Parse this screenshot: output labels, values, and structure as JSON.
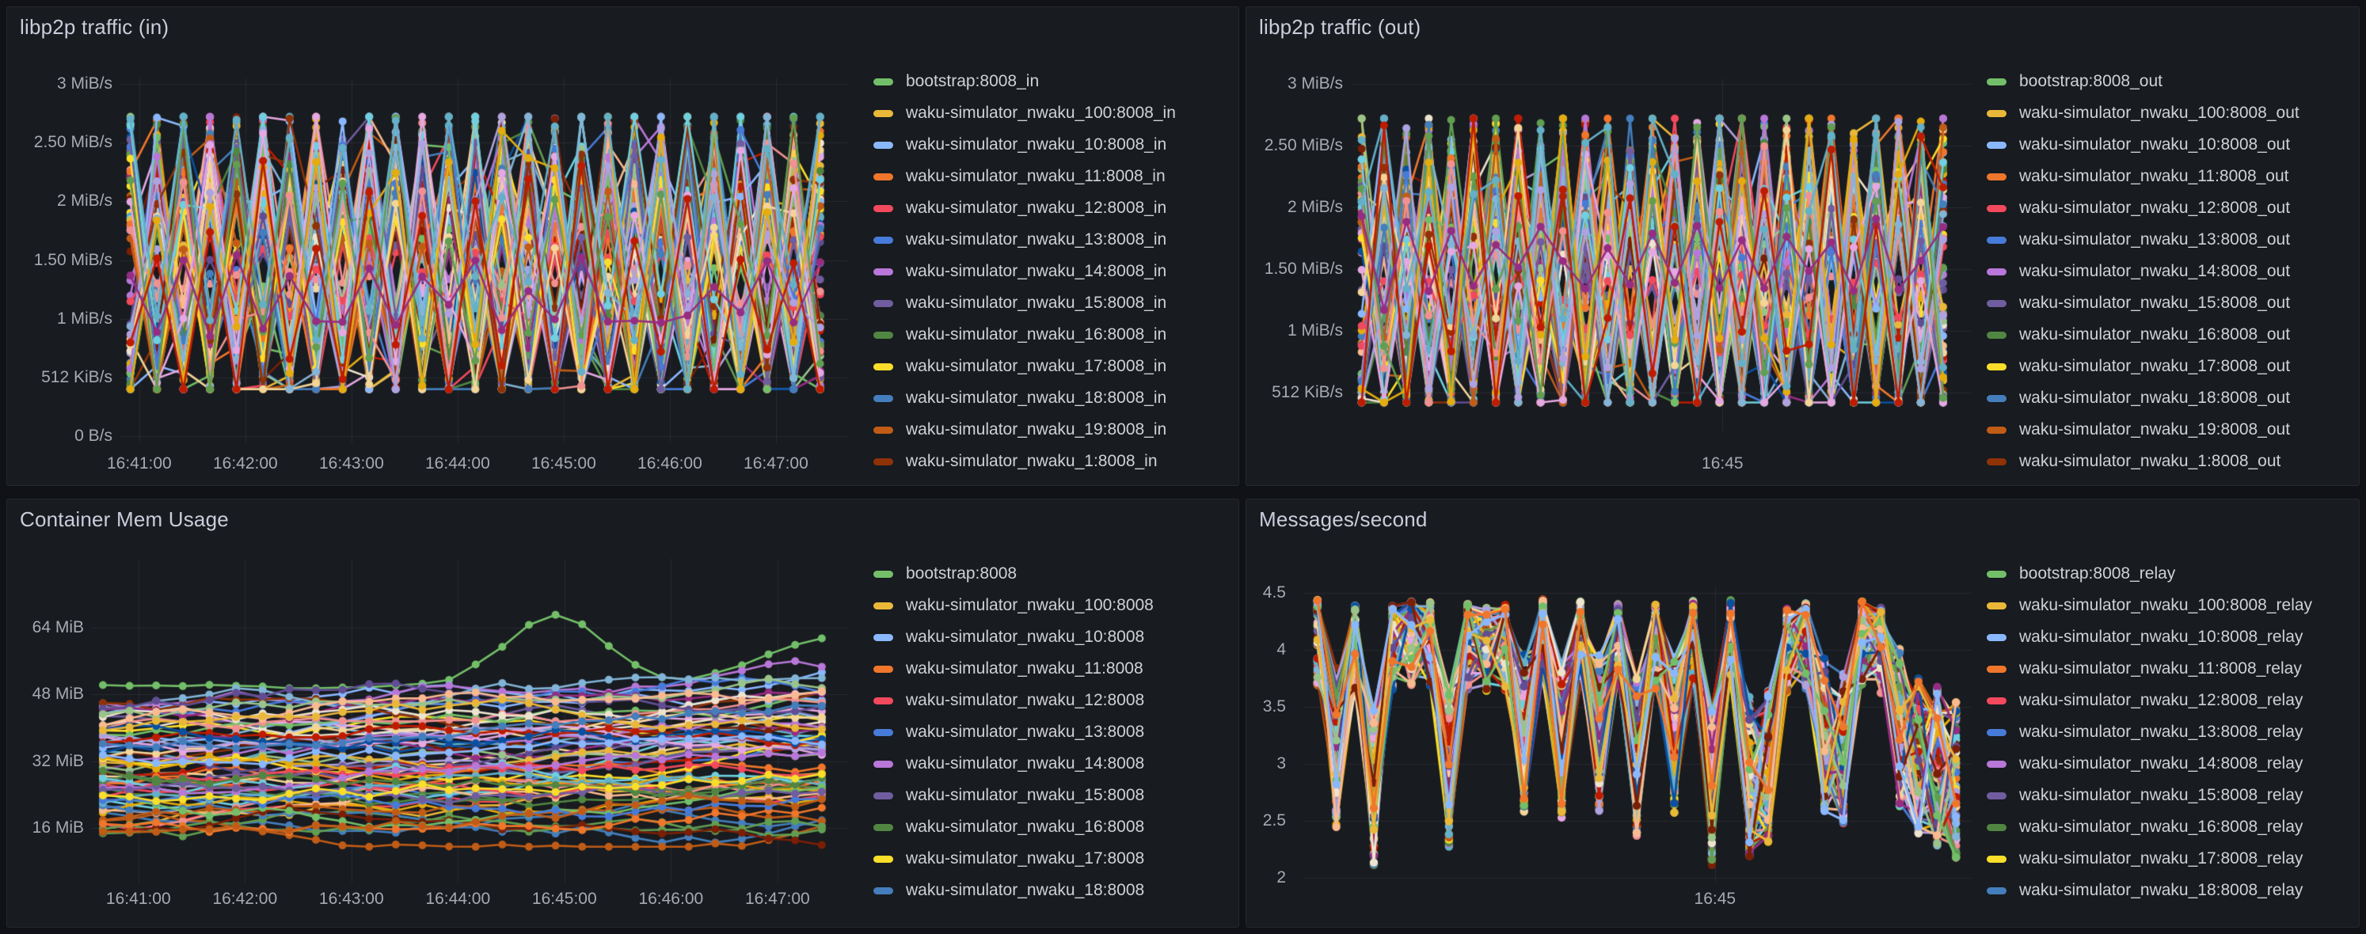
{
  "page": {
    "background": "#111217",
    "panel_background": "#181b1f"
  },
  "theme": {
    "accent_text": "#ccccdc",
    "axis_text": "#a7aab2",
    "grid_color": "rgba(204,204,220,0.09)"
  },
  "palette": [
    "#73BF69",
    "#EAB839",
    "#8AB8FF",
    "#F0762B",
    "#F2495C",
    "#477BD9",
    "#B877D9",
    "#705DA0",
    "#508642",
    "#FADE2A",
    "#447EBC",
    "#C15C17",
    "#8F3208",
    "#6ED0E0",
    "#F4D598",
    "#F29191",
    "#82B5D8",
    "#E5A8E2",
    "#AEA2E0",
    "#629E51",
    "#E5AC0E",
    "#64B0C8",
    "#BF1B00",
    "#962D82",
    "#EDE4CF",
    "#0A50A1",
    "#614D93",
    "#9AC48A",
    "#F9BA8F",
    "#7A1F06"
  ],
  "chart_data": [
    {
      "id": "libp2p_traffic_in",
      "type": "line",
      "title": "libp2p traffic (in)",
      "y_tick_labels": [
        "3 MiB/s",
        "2.50 MiB/s",
        "2 MiB/s",
        "1.50 MiB/s",
        "1 MiB/s",
        "512 KiB/s",
        "0 B/s"
      ],
      "y_tick_values_mib_per_s": [
        3,
        2.5,
        2,
        1.5,
        1,
        0.5,
        0
      ],
      "ylim_mib_per_s": [
        0,
        3.15
      ],
      "x_tick_labels": [
        "16:41:00",
        "16:42:00",
        "16:43:00",
        "16:44:00",
        "16:45:00",
        "16:46:00",
        "16:47:00"
      ],
      "x_range": [
        "16:40:52",
        "16:47:39"
      ],
      "legend_position": "right",
      "legend_entries": [
        "bootstrap:8008_in",
        "waku-simulator_nwaku_100:8008_in",
        "waku-simulator_nwaku_10:8008_in",
        "waku-simulator_nwaku_11:8008_in",
        "waku-simulator_nwaku_12:8008_in",
        "waku-simulator_nwaku_13:8008_in",
        "waku-simulator_nwaku_14:8008_in",
        "waku-simulator_nwaku_15:8008_in",
        "waku-simulator_nwaku_16:8008_in",
        "waku-simulator_nwaku_17:8008_in",
        "waku-simulator_nwaku_18:8008_in",
        "waku-simulator_nwaku_19:8008_in",
        "waku-simulator_nwaku_1:8008_in"
      ],
      "legend_last_entry_clipped": true,
      "estimated_total_series": 101,
      "value_envelope_mib_per_s": [
        0.4,
        2.72
      ],
      "sample_interval_seconds": 15,
      "pattern": "dense alternating zigzag, all series oscillate between ~0.4 and ~2.7 MiB/s with point markers"
    },
    {
      "id": "libp2p_traffic_out",
      "type": "line",
      "title": "libp2p traffic (out)",
      "y_tick_labels": [
        "3 MiB/s",
        "2.50 MiB/s",
        "2 MiB/s",
        "1.50 MiB/s",
        "1 MiB/s",
        "512 KiB/s"
      ],
      "y_tick_values_mib_per_s": [
        3,
        2.5,
        2,
        1.5,
        1,
        0.5
      ],
      "ylim_mib_per_s": [
        0.2,
        3.15
      ],
      "x_tick_labels": [
        "16:45"
      ],
      "x_range": [
        "16:40:58",
        "16:47:45"
      ],
      "legend_position": "right",
      "legend_entries": [
        "bootstrap:8008_out",
        "waku-simulator_nwaku_100:8008_out",
        "waku-simulator_nwaku_10:8008_out",
        "waku-simulator_nwaku_11:8008_out",
        "waku-simulator_nwaku_12:8008_out",
        "waku-simulator_nwaku_13:8008_out",
        "waku-simulator_nwaku_14:8008_out",
        "waku-simulator_nwaku_15:8008_out",
        "waku-simulator_nwaku_16:8008_out",
        "waku-simulator_nwaku_17:8008_out",
        "waku-simulator_nwaku_18:8008_out",
        "waku-simulator_nwaku_19:8008_out",
        "waku-simulator_nwaku_1:8008_out"
      ],
      "legend_last_entry_clipped": true,
      "estimated_total_series": 101,
      "value_envelope_mib_per_s": [
        0.42,
        2.72
      ],
      "sample_interval_seconds": 15,
      "pattern": "dense alternating zigzag, same behaviour as inbound traffic panel"
    },
    {
      "id": "container_mem_usage",
      "type": "line",
      "title": "Container Mem Usage",
      "y_tick_labels": [
        "64 MiB",
        "48 MiB",
        "32 MiB",
        "16 MiB"
      ],
      "y_tick_values_mib": [
        64,
        48,
        32,
        16
      ],
      "ylim_mib": [
        8,
        80
      ],
      "x_tick_labels": [
        "16:41:00",
        "16:42:00",
        "16:43:00",
        "16:44:00",
        "16:45:00",
        "16:46:00",
        "16:47:00"
      ],
      "x_range": [
        "16:40:40",
        "16:47:38"
      ],
      "legend_position": "right",
      "legend_entries": [
        "bootstrap:8008",
        "waku-simulator_nwaku_100:8008",
        "waku-simulator_nwaku_10:8008",
        "waku-simulator_nwaku_11:8008",
        "waku-simulator_nwaku_12:8008",
        "waku-simulator_nwaku_13:8008",
        "waku-simulator_nwaku_14:8008",
        "waku-simulator_nwaku_15:8008",
        "waku-simulator_nwaku_16:8008",
        "waku-simulator_nwaku_17:8008",
        "waku-simulator_nwaku_18:8008"
      ],
      "legend_last_entry_clipped": false,
      "estimated_total_series": 101,
      "value_envelope_mib": [
        12,
        68
      ],
      "sample_interval_seconds": 15,
      "pattern": "noisy random walks between ~14 and ~55 MiB with slight upward drift; one green series spikes to ~68 MiB around 16:43:40 and rises again near the right edge"
    },
    {
      "id": "messages_per_second",
      "type": "line",
      "title": "Messages/second",
      "y_tick_labels": [
        "4.5",
        "4",
        "3.5",
        "3",
        "2.5",
        "2"
      ],
      "y_tick_values": [
        4.5,
        4,
        3.5,
        3,
        2.5,
        2
      ],
      "ylim": [
        1.85,
        4.6
      ],
      "x_tick_labels": [
        "16:45"
      ],
      "x_range": [
        "16:40:46",
        "16:47:42"
      ],
      "legend_position": "right",
      "legend_entries": [
        "bootstrap:8008_relay",
        "waku-simulator_nwaku_100:8008_relay",
        "waku-simulator_nwaku_10:8008_relay",
        "waku-simulator_nwaku_11:8008_relay",
        "waku-simulator_nwaku_12:8008_relay",
        "waku-simulator_nwaku_13:8008_relay",
        "waku-simulator_nwaku_14:8008_relay",
        "waku-simulator_nwaku_15:8008_relay",
        "waku-simulator_nwaku_16:8008_relay",
        "waku-simulator_nwaku_17:8008_relay",
        "waku-simulator_nwaku_18:8008_relay"
      ],
      "legend_last_entry_clipped": false,
      "estimated_total_series": 101,
      "value_envelope": [
        2.2,
        4.45
      ],
      "sample_interval_seconds": 12,
      "pattern": "strongly correlated sawtooth: flat tops near ~4.4-4.45 msg/s with shared deep dips fanning down to ~2.2 msg/s"
    }
  ]
}
